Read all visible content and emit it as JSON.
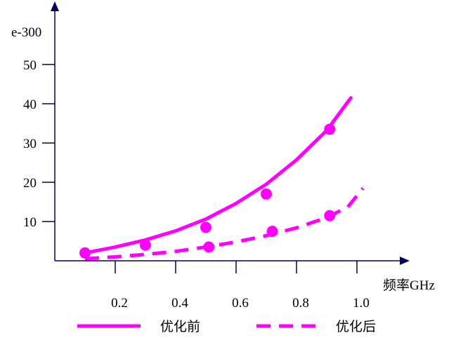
{
  "chart_data": {
    "type": "line",
    "ylabel": "e-300",
    "xlabel": "频率GHz",
    "xlim": [
      0.0,
      1.1
    ],
    "ylim": [
      0,
      55
    ],
    "xticks": [
      0.2,
      0.4,
      0.6,
      0.8,
      1.0
    ],
    "xtick_labels": [
      "0.2",
      "0.4",
      "0.6",
      "0.8",
      "1.0"
    ],
    "yticks": [
      10,
      20,
      30,
      40,
      50
    ],
    "ytick_labels": [
      "10",
      "20",
      "30",
      "40",
      "50"
    ],
    "grid": false,
    "legend_position": "bottom",
    "color": "#ff00ff",
    "series": [
      {
        "name": "优化前",
        "style": "solid",
        "curve_x": [
          0.1,
          0.2,
          0.3,
          0.4,
          0.5,
          0.6,
          0.7,
          0.8,
          0.9,
          0.98
        ],
        "curve_y": [
          2,
          3.5,
          5.3,
          7.6,
          10.6,
          14.6,
          19.5,
          25.7,
          33.2,
          41.5
        ],
        "points_x": [
          0.1,
          0.3,
          0.5,
          0.7,
          0.91
        ],
        "points_y": [
          2,
          4,
          8.5,
          17,
          33.5
        ]
      },
      {
        "name": "优化后",
        "style": "dashed",
        "curve_x": [
          0.1,
          0.2,
          0.3,
          0.4,
          0.5,
          0.6,
          0.7,
          0.8,
          0.9,
          0.97,
          1.02
        ],
        "curve_y": [
          0.5,
          1,
          1.6,
          2.4,
          3.5,
          4.8,
          6.4,
          8.4,
          11,
          13.7,
          18.5
        ],
        "points_x": [
          0.51,
          0.72,
          0.91
        ],
        "points_y": [
          3.5,
          7.5,
          11.5
        ]
      }
    ]
  }
}
